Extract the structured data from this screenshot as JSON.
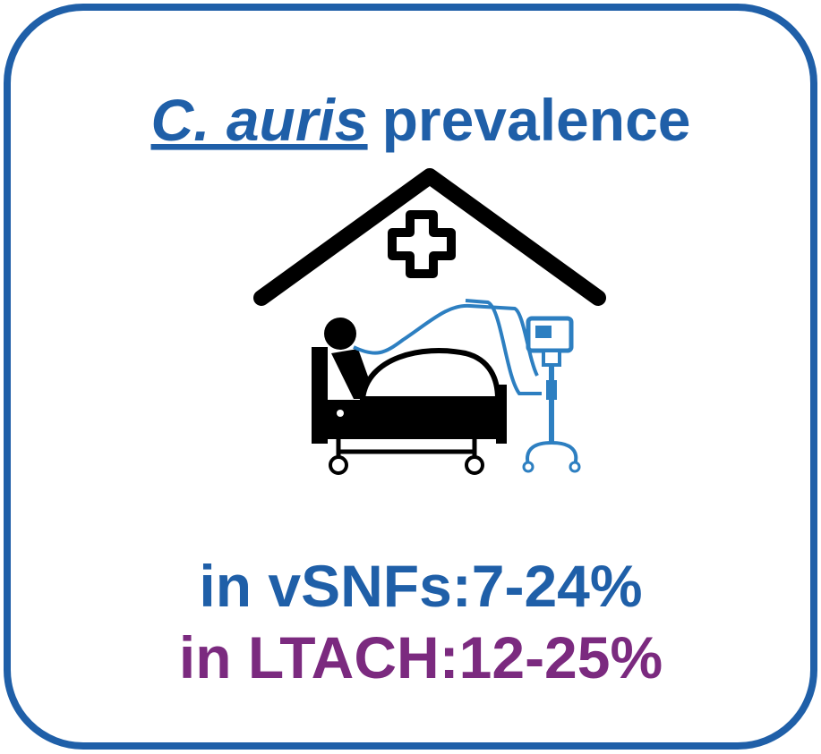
{
  "title": {
    "italic": "C. auris",
    "rest": "prevalence"
  },
  "lines": [
    "in vSNFs:7-24%",
    "in LTACH:12-25%"
  ]
}
